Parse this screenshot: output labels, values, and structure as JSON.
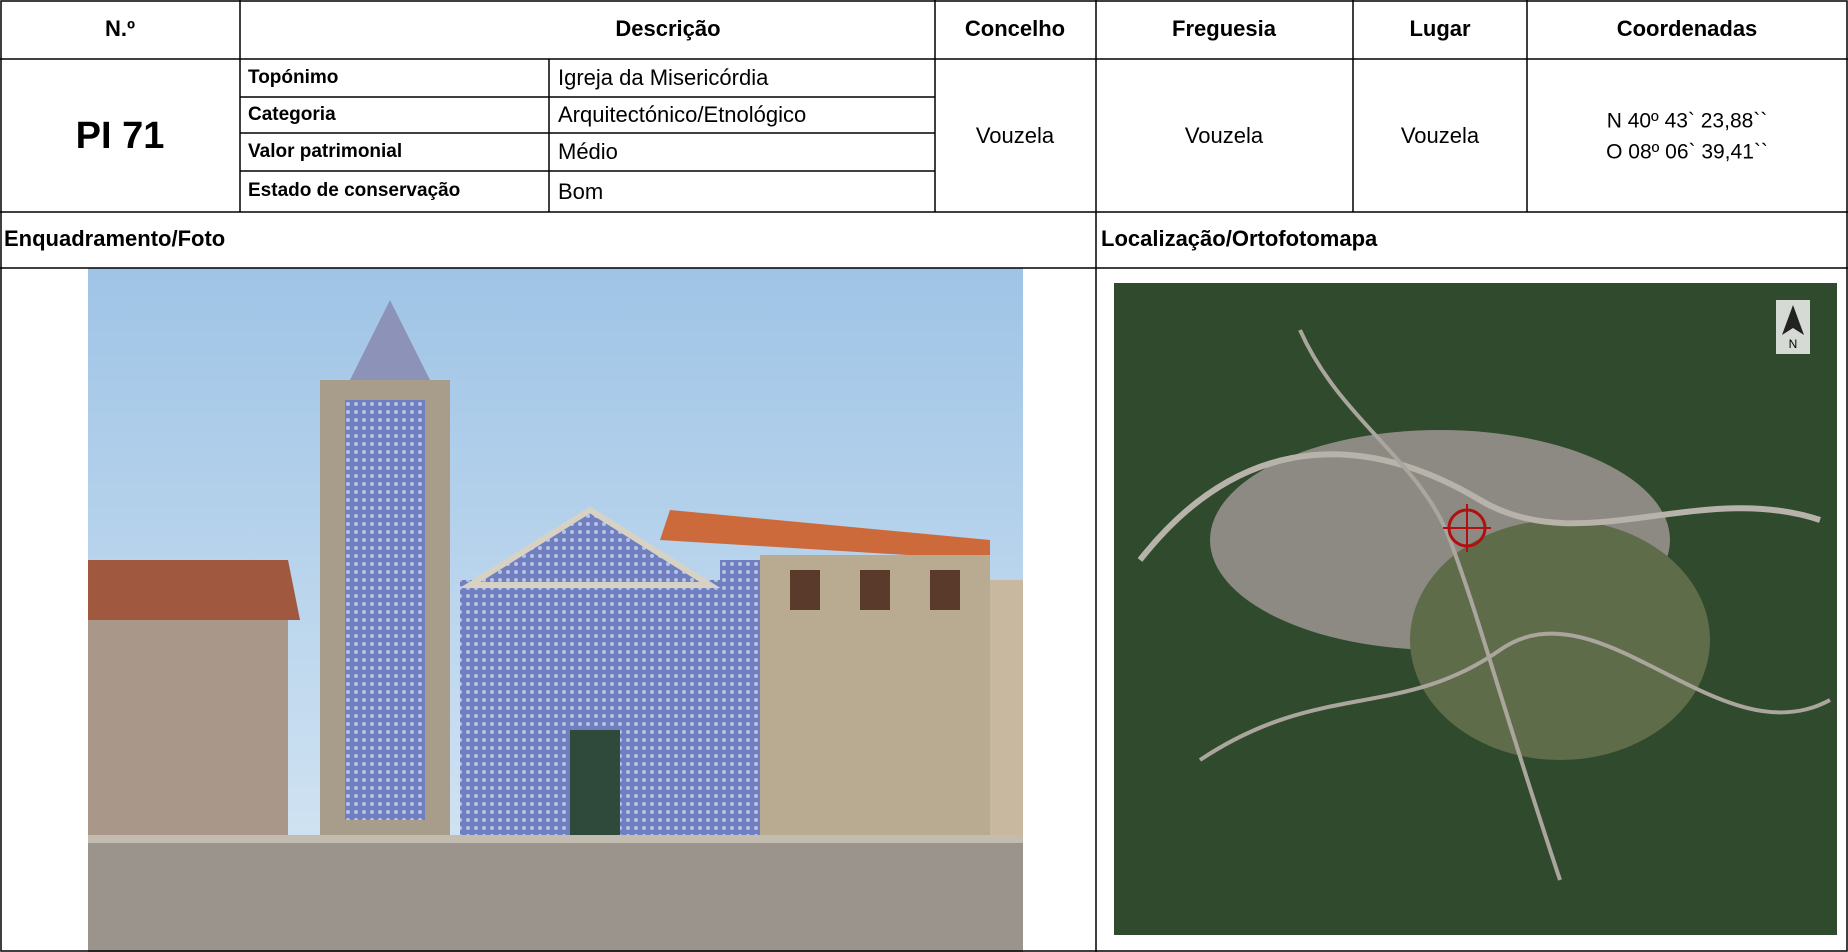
{
  "header": {
    "columns": [
      "N.º",
      "Descrição",
      "Concelho",
      "Freguesia",
      "Lugar",
      "Coordenadas"
    ]
  },
  "record": {
    "number": "PI 71",
    "description": [
      {
        "label": "Topónimo",
        "value": "Igreja da Misericórdia"
      },
      {
        "label": "Categoria",
        "value": "Arquitectónico/Etnológico"
      },
      {
        "label": "Valor patrimonial",
        "value": "Médio"
      },
      {
        "label": "Estado de conservação",
        "value": "Bom"
      }
    ],
    "concelho": "Vouzela",
    "freguesia": "Vouzela",
    "lugar": "Vouzela",
    "coordinates": [
      "N 40º 43` 23,88``",
      "O 08º 06` 39,41``"
    ]
  },
  "sections": {
    "photo": "Enquadramento/Foto",
    "map": "Localização/Ortofotomapa",
    "north_label": "N"
  }
}
